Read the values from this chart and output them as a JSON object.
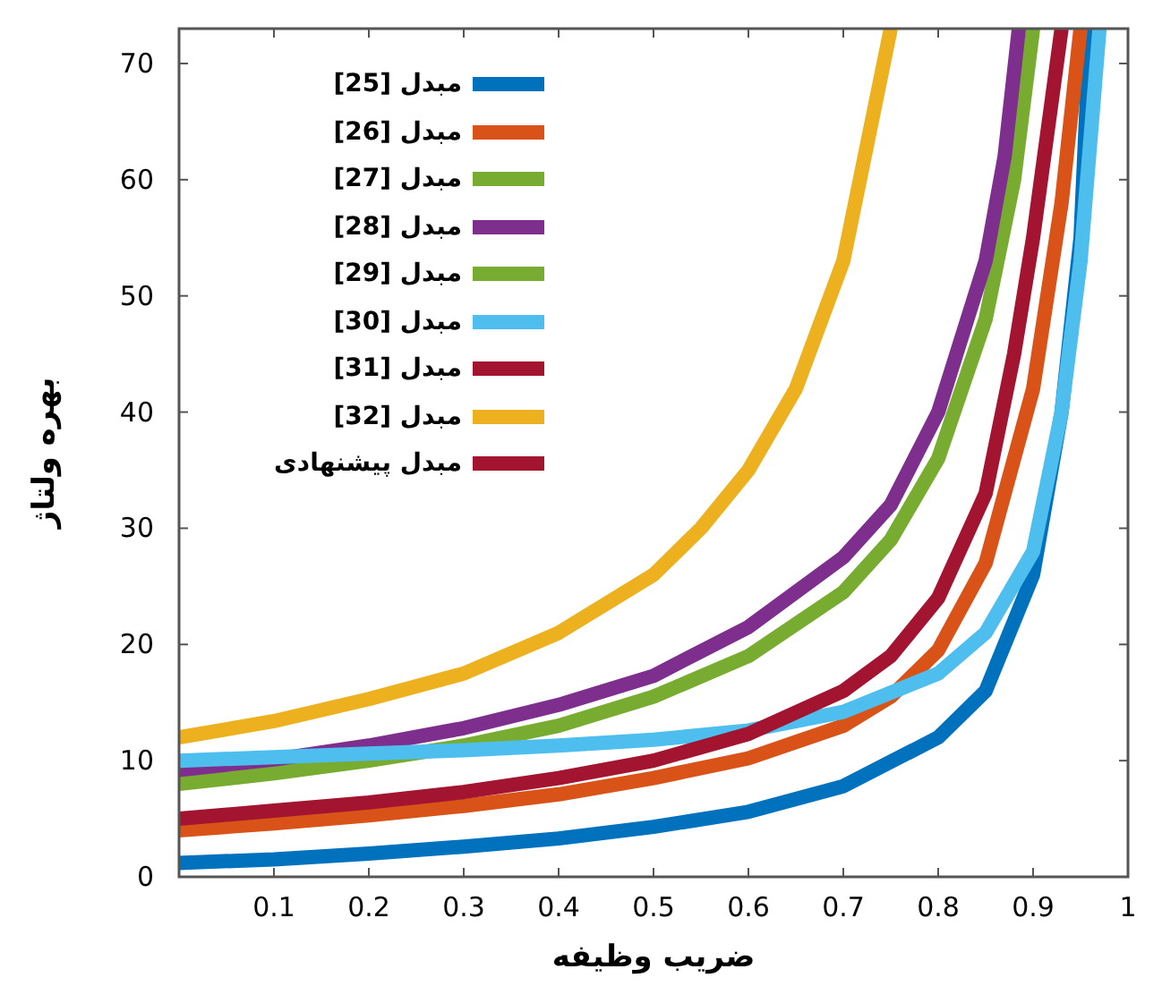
{
  "chart_data": {
    "type": "line",
    "xlabel": "ضریب وظیفه",
    "ylabel": "بهره ولتاژ",
    "xlim": [
      0,
      1
    ],
    "ylim": [
      0,
      73
    ],
    "xticks": [
      0.1,
      0.2,
      0.3,
      0.4,
      0.5,
      0.6,
      0.7,
      0.8,
      0.9,
      1
    ],
    "yticks": [
      0,
      10,
      20,
      30,
      40,
      50,
      60,
      70
    ],
    "legend": "top left",
    "series": [
      {
        "name": "مبدل [25]",
        "color": "#0072bd",
        "x": [
          0,
          0.1,
          0.2,
          0.3,
          0.4,
          0.5,
          0.6,
          0.7,
          0.8,
          0.85,
          0.9,
          0.93,
          0.95,
          0.96
        ],
        "values": [
          1.2,
          1.5,
          2,
          2.6,
          3.3,
          4.3,
          5.6,
          7.8,
          12,
          16,
          26,
          40,
          55,
          73
        ]
      },
      {
        "name": "مبدل [26]",
        "color": "#d95319",
        "x": [
          0,
          0.1,
          0.2,
          0.3,
          0.4,
          0.5,
          0.6,
          0.7,
          0.75,
          0.8,
          0.85,
          0.9,
          0.93,
          0.95
        ],
        "values": [
          4,
          4.6,
          5.3,
          6.1,
          7.1,
          8.5,
          10.2,
          13,
          15.5,
          19.5,
          27,
          42,
          58,
          73
        ]
      },
      {
        "name": "مبدل [27]",
        "color": "#77ac30",
        "x": [
          0,
          0.1,
          0.2,
          0.3,
          0.4,
          0.5,
          0.6,
          0.7,
          0.75,
          0.8,
          0.85,
          0.88,
          0.9
        ],
        "values": [
          8,
          8.9,
          10,
          11.3,
          13,
          15.5,
          19,
          24.5,
          29,
          36,
          48,
          60,
          73
        ]
      },
      {
        "name": "مبدل [28]",
        "color": "#7e2f8e",
        "x": [
          0,
          0.1,
          0.2,
          0.3,
          0.4,
          0.5,
          0.6,
          0.7,
          0.75,
          0.8,
          0.85,
          0.87,
          0.885
        ],
        "values": [
          9.2,
          10.1,
          11.3,
          12.8,
          14.8,
          17.3,
          21.5,
          27.5,
          32,
          40,
          53,
          62,
          73
        ]
      },
      {
        "name": "مبدل [29]",
        "color": "#77ac30"
      },
      {
        "name": "مبدل [30]",
        "color": "#4dbeee",
        "x": [
          0,
          0.1,
          0.2,
          0.3,
          0.4,
          0.5,
          0.6,
          0.7,
          0.8,
          0.85,
          0.9,
          0.93,
          0.95,
          0.97
        ],
        "values": [
          10,
          10.3,
          10.6,
          10.9,
          11.3,
          11.8,
          12.6,
          14.2,
          17.5,
          21,
          28,
          40,
          53,
          73
        ]
      },
      {
        "name": "مبدل [31]",
        "color": "#a2142f"
      },
      {
        "name": "مبدل [32]",
        "color": "#edb120",
        "x": [
          0,
          0.1,
          0.2,
          0.3,
          0.4,
          0.5,
          0.55,
          0.6,
          0.65,
          0.7,
          0.73,
          0.75
        ],
        "values": [
          12,
          13.4,
          15.3,
          17.5,
          21,
          26,
          30,
          35,
          42,
          53,
          65,
          73
        ]
      },
      {
        "name": "مبدل پیشنهادی",
        "color": "#a2142f",
        "x": [
          0,
          0.1,
          0.2,
          0.3,
          0.4,
          0.5,
          0.6,
          0.7,
          0.75,
          0.8,
          0.85,
          0.88,
          0.9,
          0.93
        ],
        "values": [
          5,
          5.7,
          6.4,
          7.3,
          8.5,
          10,
          12.3,
          16,
          19,
          24,
          33,
          45,
          55,
          73
        ]
      }
    ]
  }
}
